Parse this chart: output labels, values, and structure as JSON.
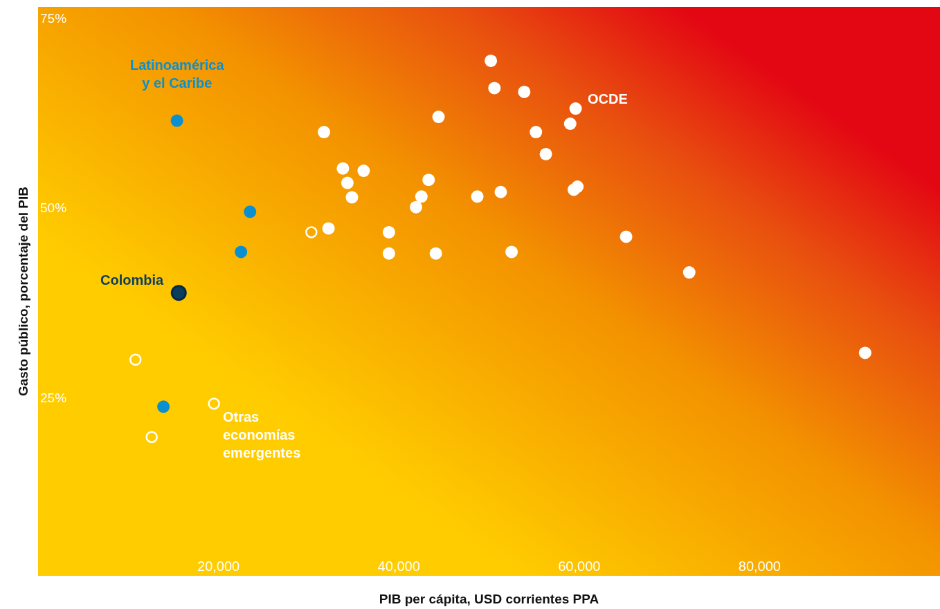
{
  "chart_data": {
    "type": "scatter",
    "xlabel": "PIB per cápita, USD corrientes PPA",
    "ylabel": "Gasto público, porcentaje del PIB",
    "xlim": [
      0,
      100000
    ],
    "ylim": [
      1.5,
      76.5
    ],
    "xticks": [
      {
        "value": 20000,
        "label": "20,000"
      },
      {
        "value": 40000,
        "label": "40,000"
      },
      {
        "value": 60000,
        "label": "60,000"
      },
      {
        "value": 80000,
        "label": "80,000"
      }
    ],
    "yticks": [
      {
        "value": 25,
        "label": "25%"
      },
      {
        "value": 50,
        "label": "50%"
      },
      {
        "value": 75,
        "label": "75%"
      }
    ],
    "grid": false,
    "legend": false,
    "marker": "circle",
    "series": [
      {
        "name": "Latinoamérica y el Caribe",
        "color": "#0a8fd0",
        "x": [
          15400,
          23500,
          22500,
          13900
        ],
        "values": [
          61.5,
          49.5,
          44.2,
          23.8
        ]
      },
      {
        "name": "Colombia",
        "color": "#0b3d5e",
        "x": [
          15600
        ],
        "values": [
          38.8
        ]
      },
      {
        "name": "OCDE",
        "color": "#ffffff",
        "x": [
          50200,
          50600,
          53900,
          44400,
          59600,
          59000,
          31700,
          55200,
          56300,
          33800,
          36100,
          34300,
          43300,
          34800,
          42500,
          41900,
          48700,
          51300,
          59400,
          59800,
          32200,
          38900,
          38900,
          44100,
          52500,
          65200,
          72200,
          91700
        ],
        "values": [
          69.4,
          65.8,
          65.3,
          62.0,
          63.1,
          61.1,
          60.0,
          60.0,
          57.1,
          55.2,
          54.9,
          53.3,
          53.7,
          51.4,
          51.5,
          50.1,
          51.5,
          52.1,
          52.4,
          52.8,
          47.3,
          46.8,
          44.0,
          44.0,
          44.2,
          46.2,
          41.5,
          30.9
        ]
      },
      {
        "name": "Otras economías emergentes",
        "color": "#ffffff",
        "marker": "circle-open",
        "x": [
          30300,
          10800,
          19500,
          12600
        ],
        "values": [
          46.8,
          30.0,
          24.2,
          19.8
        ]
      }
    ]
  }
}
